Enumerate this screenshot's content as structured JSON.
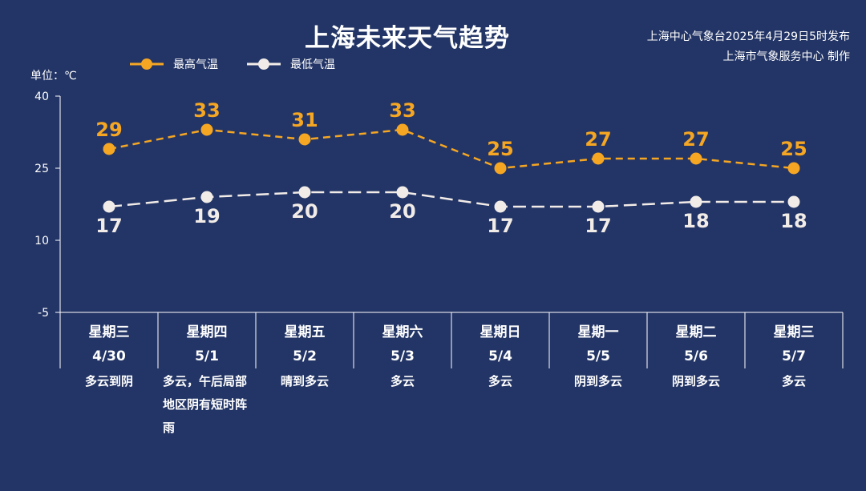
{
  "header": {
    "title": "上海未来天气趋势",
    "issuer_line1": "上海中心气象台2025年4月29日5时发布",
    "issuer_line2": "上海市气象服务中心 制作",
    "unit": "单位：℃"
  },
  "colors": {
    "background": "#233566",
    "high": "#f5a623",
    "low": "#f2ece8",
    "axis": "#ffffff"
  },
  "chart_data": {
    "type": "line",
    "title": "上海未来天气趋势",
    "ylabel": "单位：℃",
    "ylim": [
      -5,
      40
    ],
    "yticks": [
      40,
      25,
      10,
      -5
    ],
    "grid": false,
    "legend": "top-left",
    "categories": [
      {
        "weekday": "星期三",
        "date": "4/30",
        "weather": "多云到阴"
      },
      {
        "weekday": "星期四",
        "date": "5/1",
        "weather": "多云，午后局部地区阴有短时阵雨"
      },
      {
        "weekday": "星期五",
        "date": "5/2",
        "weather": "晴到多云"
      },
      {
        "weekday": "星期六",
        "date": "5/3",
        "weather": "多云"
      },
      {
        "weekday": "星期日",
        "date": "5/4",
        "weather": "多云"
      },
      {
        "weekday": "星期一",
        "date": "5/5",
        "weather": "阴到多云"
      },
      {
        "weekday": "星期二",
        "date": "5/6",
        "weather": "阴到多云"
      },
      {
        "weekday": "星期三",
        "date": "5/7",
        "weather": "多云"
      }
    ],
    "series": [
      {
        "name": "最高气温",
        "values": [
          29,
          33,
          31,
          33,
          25,
          27,
          27,
          25
        ]
      },
      {
        "name": "最低气温",
        "values": [
          17,
          19,
          20,
          20,
          17,
          17,
          18,
          18
        ]
      }
    ]
  }
}
